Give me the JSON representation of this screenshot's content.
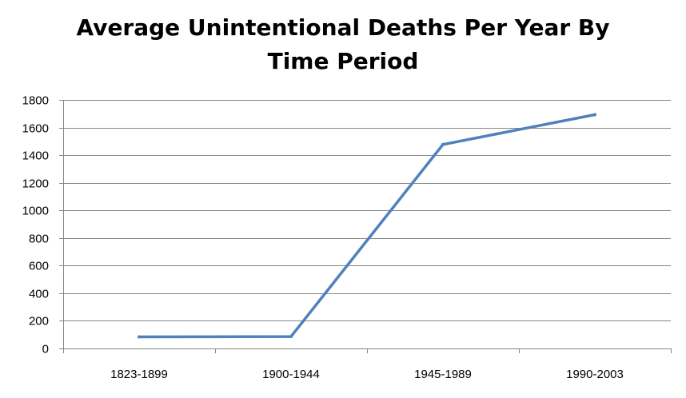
{
  "chart_data": {
    "type": "line",
    "title_lines": [
      "Average Unintentional Deaths Per Year By",
      "Time Period"
    ],
    "xlabel": "",
    "ylabel": "",
    "categories": [
      "1823-1899",
      "1900-1944",
      "1945-1989",
      "1990-2003"
    ],
    "series": [
      {
        "values": [
          84,
          86,
          1477,
          1693
        ],
        "color": "#4F81BD"
      }
    ],
    "ylim": [
      0,
      1800
    ],
    "yticks": [
      "0",
      "200",
      "400",
      "600",
      "800",
      "1000",
      "1200",
      "1400",
      "1600",
      "1800"
    ],
    "grid": true,
    "legend": "none"
  },
  "colors": {
    "series_line": "#4F81BD",
    "gridline": "#868686",
    "axis": "#868686"
  }
}
